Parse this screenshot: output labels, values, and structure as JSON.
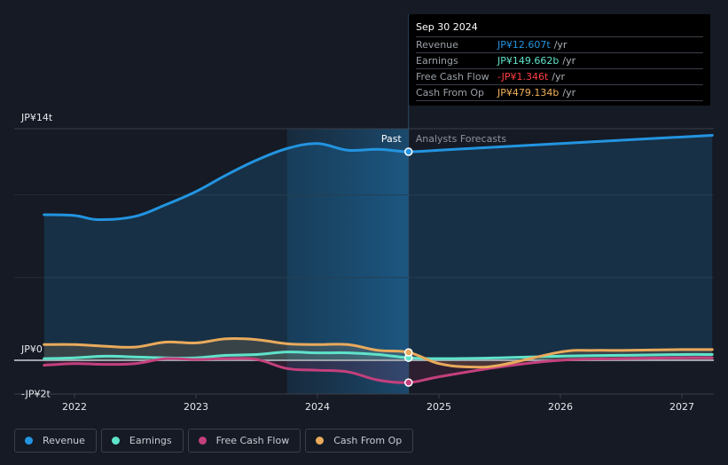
{
  "tooltip": {
    "date": "Sep 30 2024",
    "unit": "/yr",
    "rows": [
      {
        "label": "Revenue",
        "value": "JP¥12.607t",
        "color": "#2394e0"
      },
      {
        "label": "Earnings",
        "value": "JP¥149.662b",
        "color": "#5fe3cb"
      },
      {
        "label": "Free Cash Flow",
        "value": "-JP¥1.346t",
        "color": "#ff3d45"
      },
      {
        "label": "Cash From Op",
        "value": "JP¥479.134b",
        "color": "#f0b15a"
      }
    ]
  },
  "legend": [
    {
      "label": "Revenue",
      "color": "#2394e0"
    },
    {
      "label": "Earnings",
      "color": "#5fe3cb"
    },
    {
      "label": "Free Cash Flow",
      "color": "#c4407d"
    },
    {
      "label": "Cash From Op",
      "color": "#e9aa5c"
    }
  ],
  "chart_data": {
    "type": "line",
    "title": "",
    "xlabel": "",
    "ylabel": "",
    "y_unit": "JP¥ trillion",
    "ylim": [
      -2,
      14
    ],
    "xlim": [
      2021.7,
      2027.25
    ],
    "y_tick_labels": [
      {
        "value": 14,
        "label": "JP¥14t"
      },
      {
        "value": 0,
        "label": "JP¥0"
      },
      {
        "value": -2,
        "label": "-JP¥2t"
      }
    ],
    "x_tick_labels": [
      "2022",
      "2023",
      "2024",
      "2025",
      "2026",
      "2027"
    ],
    "x_ticks": [
      2022,
      2023,
      2024,
      2025,
      2026,
      2027
    ],
    "gridlines_y": [
      14,
      10,
      5
    ],
    "past_label": "Past",
    "forecast_label": "Analysts Forecasts",
    "past_start": 2023.75,
    "divider": 2024.75,
    "series": [
      {
        "name": "Revenue",
        "color": "#2394e0",
        "x": [
          2021.75,
          2022.0,
          2022.2,
          2022.5,
          2022.75,
          2023.0,
          2023.25,
          2023.5,
          2023.75,
          2024.0,
          2024.25,
          2024.5,
          2024.75,
          2025.0,
          2025.5,
          2026.0,
          2026.5,
          2027.0,
          2027.25
        ],
        "y": [
          8.8,
          8.75,
          8.5,
          8.7,
          9.4,
          10.2,
          11.2,
          12.1,
          12.8,
          13.1,
          12.7,
          12.75,
          12.607,
          12.7,
          12.9,
          13.1,
          13.3,
          13.5,
          13.6
        ]
      },
      {
        "name": "Earnings",
        "color": "#5fe3cb",
        "x": [
          2021.75,
          2022.0,
          2022.25,
          2022.5,
          2022.75,
          2023.0,
          2023.25,
          2023.5,
          2023.75,
          2024.0,
          2024.25,
          2024.5,
          2024.75,
          2025.0,
          2025.5,
          2026.0,
          2026.5,
          2027.0,
          2027.25
        ],
        "y": [
          0.1,
          0.15,
          0.25,
          0.2,
          0.15,
          0.15,
          0.3,
          0.35,
          0.5,
          0.45,
          0.45,
          0.35,
          0.15,
          0.1,
          0.15,
          0.25,
          0.3,
          0.35,
          0.35
        ]
      },
      {
        "name": "Free Cash Flow",
        "color": "#c4407d",
        "x": [
          2021.75,
          2022.0,
          2022.25,
          2022.5,
          2022.75,
          2023.0,
          2023.25,
          2023.5,
          2023.75,
          2024.0,
          2024.25,
          2024.5,
          2024.75,
          2025.0,
          2025.5,
          2026.0,
          2026.5,
          2027.0,
          2027.25
        ],
        "y": [
          -0.3,
          -0.2,
          -0.25,
          -0.2,
          0.1,
          0.05,
          0.1,
          0.05,
          -0.5,
          -0.6,
          -0.7,
          -1.2,
          -1.346,
          -1.0,
          -0.4,
          0.0,
          0.1,
          0.15,
          0.15
        ]
      },
      {
        "name": "Cash From Op",
        "color": "#e9aa5c",
        "x": [
          2021.75,
          2022.0,
          2022.25,
          2022.5,
          2022.75,
          2023.0,
          2023.25,
          2023.5,
          2023.75,
          2024.0,
          2024.25,
          2024.5,
          2024.75,
          2025.0,
          2025.25,
          2025.5,
          2026.0,
          2026.25,
          2026.5,
          2027.0,
          2027.25
        ],
        "y": [
          0.95,
          0.95,
          0.85,
          0.8,
          1.1,
          1.05,
          1.3,
          1.25,
          1.0,
          0.95,
          0.95,
          0.6,
          0.479,
          -0.2,
          -0.4,
          -0.3,
          0.5,
          0.6,
          0.6,
          0.65,
          0.65
        ]
      }
    ],
    "highlight_points": [
      {
        "series": "Revenue",
        "x": 2024.75,
        "y": 12.607
      },
      {
        "series": "Earnings",
        "x": 2024.75,
        "y": 0.15
      },
      {
        "series": "Free Cash Flow",
        "x": 2024.75,
        "y": -1.346
      },
      {
        "series": "Cash From Op",
        "x": 2024.75,
        "y": 0.479
      }
    ],
    "legend_position": "bottom-left",
    "grid": true
  }
}
